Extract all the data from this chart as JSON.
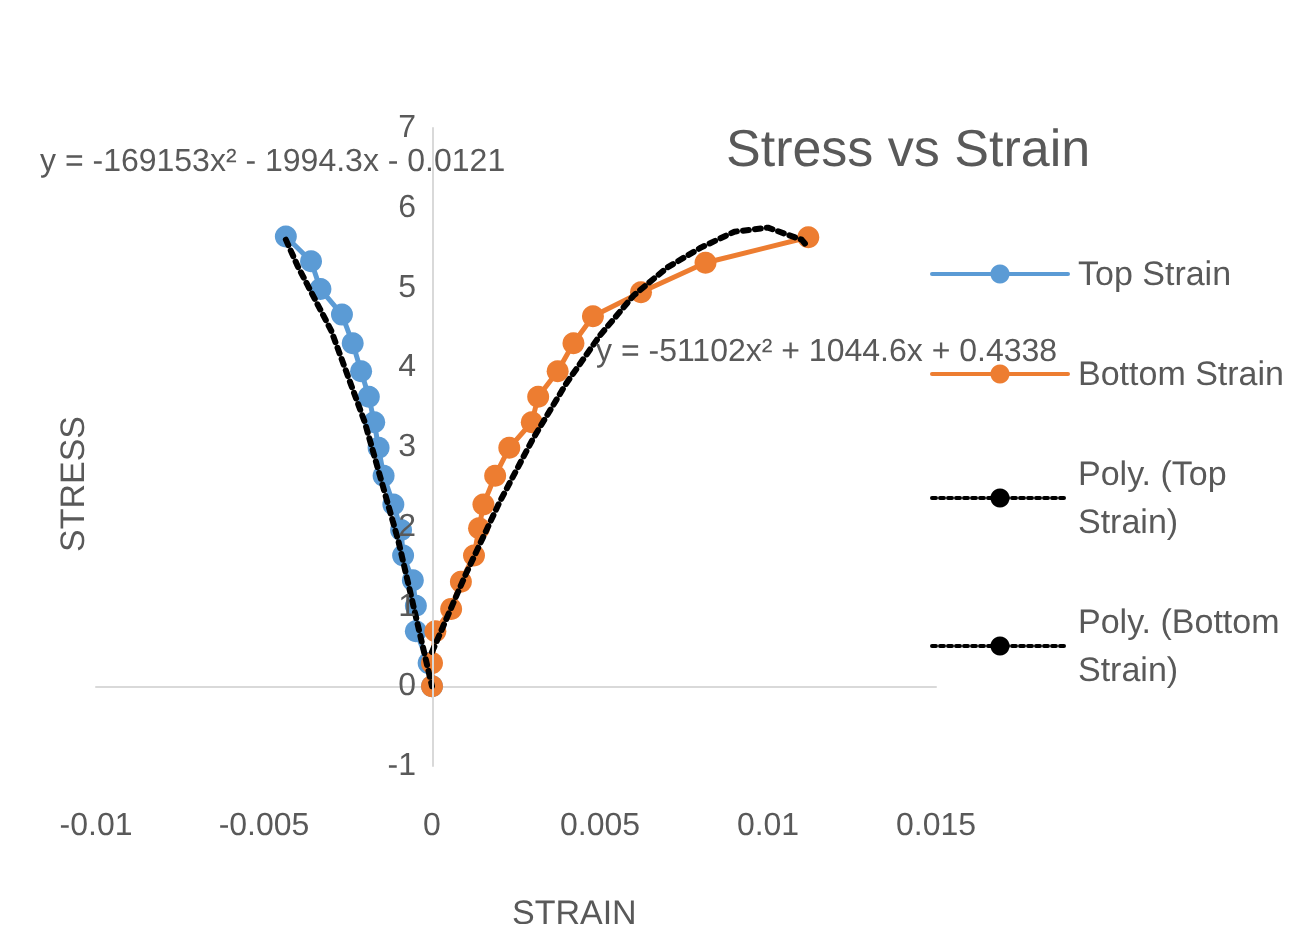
{
  "chart_data": {
    "type": "line",
    "title": "Stress vs Strain",
    "xlabel": "STRAIN",
    "ylabel": "STRESS",
    "annotations": [
      "y = -169153x² - 1994.3x - 0.0121",
      "y = -51102x² + 1044.6x + 0.4338"
    ],
    "xlim": [
      -0.01,
      0.015
    ],
    "xticks": [
      -0.01,
      -0.005,
      0,
      0.005,
      0.01,
      0.015
    ],
    "ylim": [
      -1,
      7
    ],
    "yticks": [
      -1,
      0,
      1,
      2,
      3,
      4,
      5,
      6,
      7
    ],
    "legend": "right",
    "marker": "circle",
    "line_style": "solid",
    "series": [
      {
        "name": "Top Strain",
        "color": "#5b9bd5",
        "x": [
          -0.00435,
          -0.0036,
          -0.00332,
          -0.00268,
          -0.00236,
          -0.00211,
          -0.00188,
          -0.00172,
          -0.00159,
          -0.00144,
          -0.00115,
          -0.00092,
          -0.00086,
          -0.00057,
          -0.00048,
          -0.00048,
          -0.0001,
          0
        ],
        "values": [
          5.64,
          5.33,
          4.98,
          4.66,
          4.3,
          3.95,
          3.63,
          3.31,
          2.99,
          2.64,
          2.28,
          1.96,
          1.64,
          1.33,
          1.01,
          0.69,
          0.29,
          0
        ]
      },
      {
        "name": "Bottom Strain",
        "color": "#ed7d31",
        "x": [
          0,
          0,
          0.0001,
          0.00057,
          0.00086,
          0.00125,
          0.0014,
          0.00153,
          0.00188,
          0.0023,
          0.00297,
          0.00316,
          0.00374,
          0.00421,
          0.00479,
          0.00622,
          0.00814,
          0.0112
        ],
        "values": [
          0,
          0.29,
          0.69,
          0.97,
          1.31,
          1.64,
          1.98,
          2.28,
          2.64,
          2.99,
          3.31,
          3.63,
          3.95,
          4.3,
          4.64,
          4.94,
          5.31,
          5.63
        ]
      },
      {
        "name": "Poly. (Top Strain)",
        "color": "#000000",
        "type": "line",
        "marker": "none",
        "line_style": "dotted",
        "x": [
          -0.00435,
          -0.004,
          -0.003,
          -0.002,
          -0.001,
          0
        ],
        "values": [
          5.6,
          5.27,
          4.46,
          3.31,
          1.82,
          0
        ]
      },
      {
        "name": "Poly. (Bottom Strain)",
        "color": "#000000",
        "type": "line",
        "marker": "none",
        "line_style": "dotted",
        "x": [
          0,
          0.001,
          0.002,
          0.003,
          0.004,
          0.005,
          0.006,
          0.007,
          0.008,
          0.009,
          0.01,
          0.011,
          0.0112
        ],
        "values": [
          0.43,
          1.4,
          2.3,
          3.1,
          3.8,
          4.4,
          4.9,
          5.25,
          5.5,
          5.7,
          5.75,
          5.6,
          5.5
        ]
      }
    ]
  }
}
